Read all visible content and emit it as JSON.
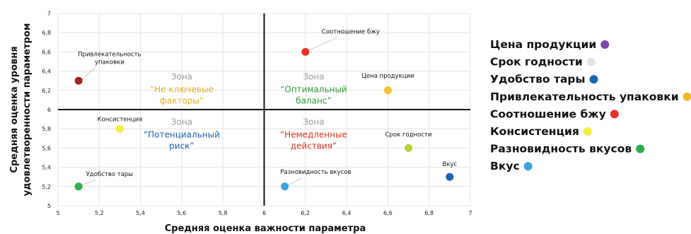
{
  "chart_data": {
    "type": "scatter",
    "xlabel": "Средняя оценка важности параметра",
    "ylabel_lines": [
      "Средняя оценка уровня",
      "удовлетворенности параметром"
    ],
    "xlim": [
      5,
      7
    ],
    "ylim": [
      5,
      7
    ],
    "x_ticks": [
      "5",
      "5,2",
      "5,4",
      "5,6",
      "5,8",
      "6",
      "6,2",
      "6,4",
      "6,6",
      "6,8",
      "7"
    ],
    "y_ticks": [
      "5",
      "5,2",
      "5,4",
      "5,6",
      "5,8",
      "6",
      "6,2",
      "6,4",
      "6,6",
      "6,8",
      "7"
    ],
    "quadrant_split": {
      "x": 6,
      "y": 6
    },
    "grid": true,
    "legend_position": "right",
    "points": [
      {
        "name": "Цена продукции",
        "x": 6.6,
        "y": 6.2,
        "color": "#f2c12e",
        "label": "Цена продукции"
      },
      {
        "name": "Срок годности",
        "x": 6.7,
        "y": 5.6,
        "color": "#b5d334",
        "label": "Срок годности"
      },
      {
        "name": "Удобство тары",
        "x": 5.1,
        "y": 5.2,
        "color": "#2ead4a",
        "label": "Удобство тары"
      },
      {
        "name": "Привлекательность упаковки",
        "x": 5.1,
        "y": 6.3,
        "color": "#a32424",
        "label_lines": [
          "Привлекательность",
          "упаковки"
        ]
      },
      {
        "name": "Соотношение бжу",
        "x": 6.2,
        "y": 6.6,
        "color": "#e53228",
        "label": "Соотношение бжу"
      },
      {
        "name": "Консистенция",
        "x": 5.3,
        "y": 5.8,
        "color": "#f3ef3d",
        "label": "Консистенция"
      },
      {
        "name": "Разновидность вкусов",
        "x": 6.1,
        "y": 5.2,
        "color": "#3aa3df",
        "label": "Разновидность вкусов"
      },
      {
        "name": "Вкус",
        "x": 6.9,
        "y": 5.3,
        "color": "#1f63b2",
        "label": "Вкус"
      }
    ],
    "zones": [
      {
        "heading": "Зона",
        "lines": [
          "“Не ключевые",
          "факторы”"
        ],
        "color": "#e0b028"
      },
      {
        "heading": "Зона",
        "lines": [
          "“Оптимальный",
          "баланс”"
        ],
        "color": "#2e9a3a"
      },
      {
        "heading": "Зона",
        "lines": [
          "“Потенциальный",
          "риск”"
        ],
        "color": "#1f5fa8"
      },
      {
        "heading": "Зона",
        "lines": [
          "“Немедленные",
          "действия”"
        ],
        "color": "#d63228"
      }
    ],
    "zone_heading_color": "#9a9a9a",
    "legend": [
      {
        "label": "Цена продукции",
        "color": "#7b46a8"
      },
      {
        "label": "Срок годности",
        "color": "#e3e3e3"
      },
      {
        "label": "Удобство тары",
        "color": "#1f63b2"
      },
      {
        "label": "Привлекательность упаковки",
        "color": "#f2b62c"
      },
      {
        "label": "Соотношение бжу",
        "color": "#e53228"
      },
      {
        "label": "Консистенция",
        "color": "#f3ef3d"
      },
      {
        "label": "Разновидность вкусов",
        "color": "#2ead4a"
      },
      {
        "label": "Вкус",
        "color": "#3aa3df"
      }
    ]
  }
}
